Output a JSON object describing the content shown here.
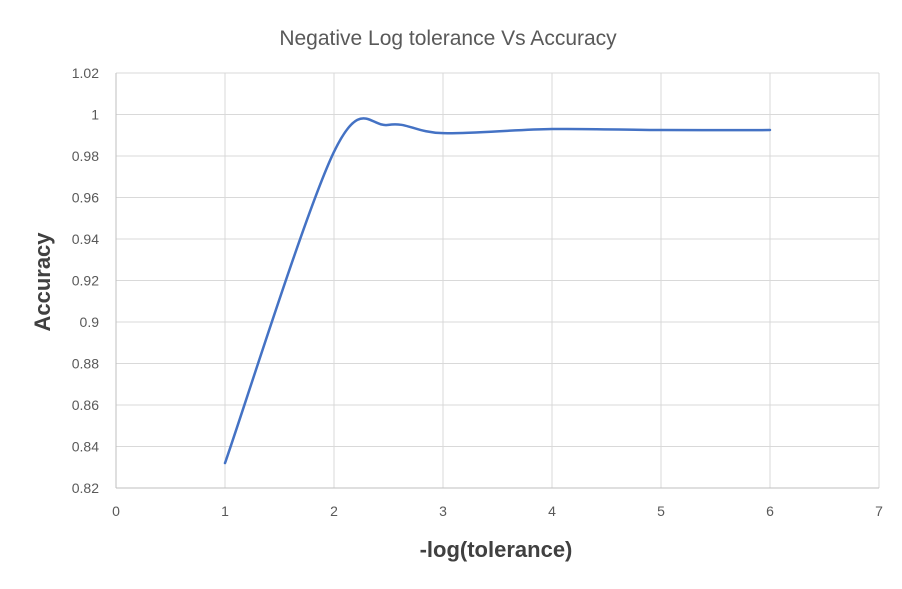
{
  "chart_data": {
    "type": "line",
    "title": "Negative Log tolerance Vs Accuracy",
    "xlabel": "-log(tolerance)",
    "ylabel": "Accuracy",
    "xlim": [
      0,
      7
    ],
    "ylim": [
      0.82,
      1.02
    ],
    "x_ticks": [
      "0",
      "1",
      "2",
      "3",
      "4",
      "5",
      "6",
      "7"
    ],
    "y_ticks": [
      "0.82",
      "0.84",
      "0.86",
      "0.88",
      "0.9",
      "0.92",
      "0.94",
      "0.96",
      "0.98",
      "1",
      "1.02"
    ],
    "grid": true,
    "legend": "none",
    "series": [
      {
        "color": "#4472c4",
        "smooth": true,
        "x": [
          1,
          2,
          2.5,
          3,
          4,
          5,
          6
        ],
        "y": [
          0.832,
          0.982,
          0.995,
          0.991,
          0.993,
          0.9925,
          0.9925
        ]
      }
    ]
  }
}
